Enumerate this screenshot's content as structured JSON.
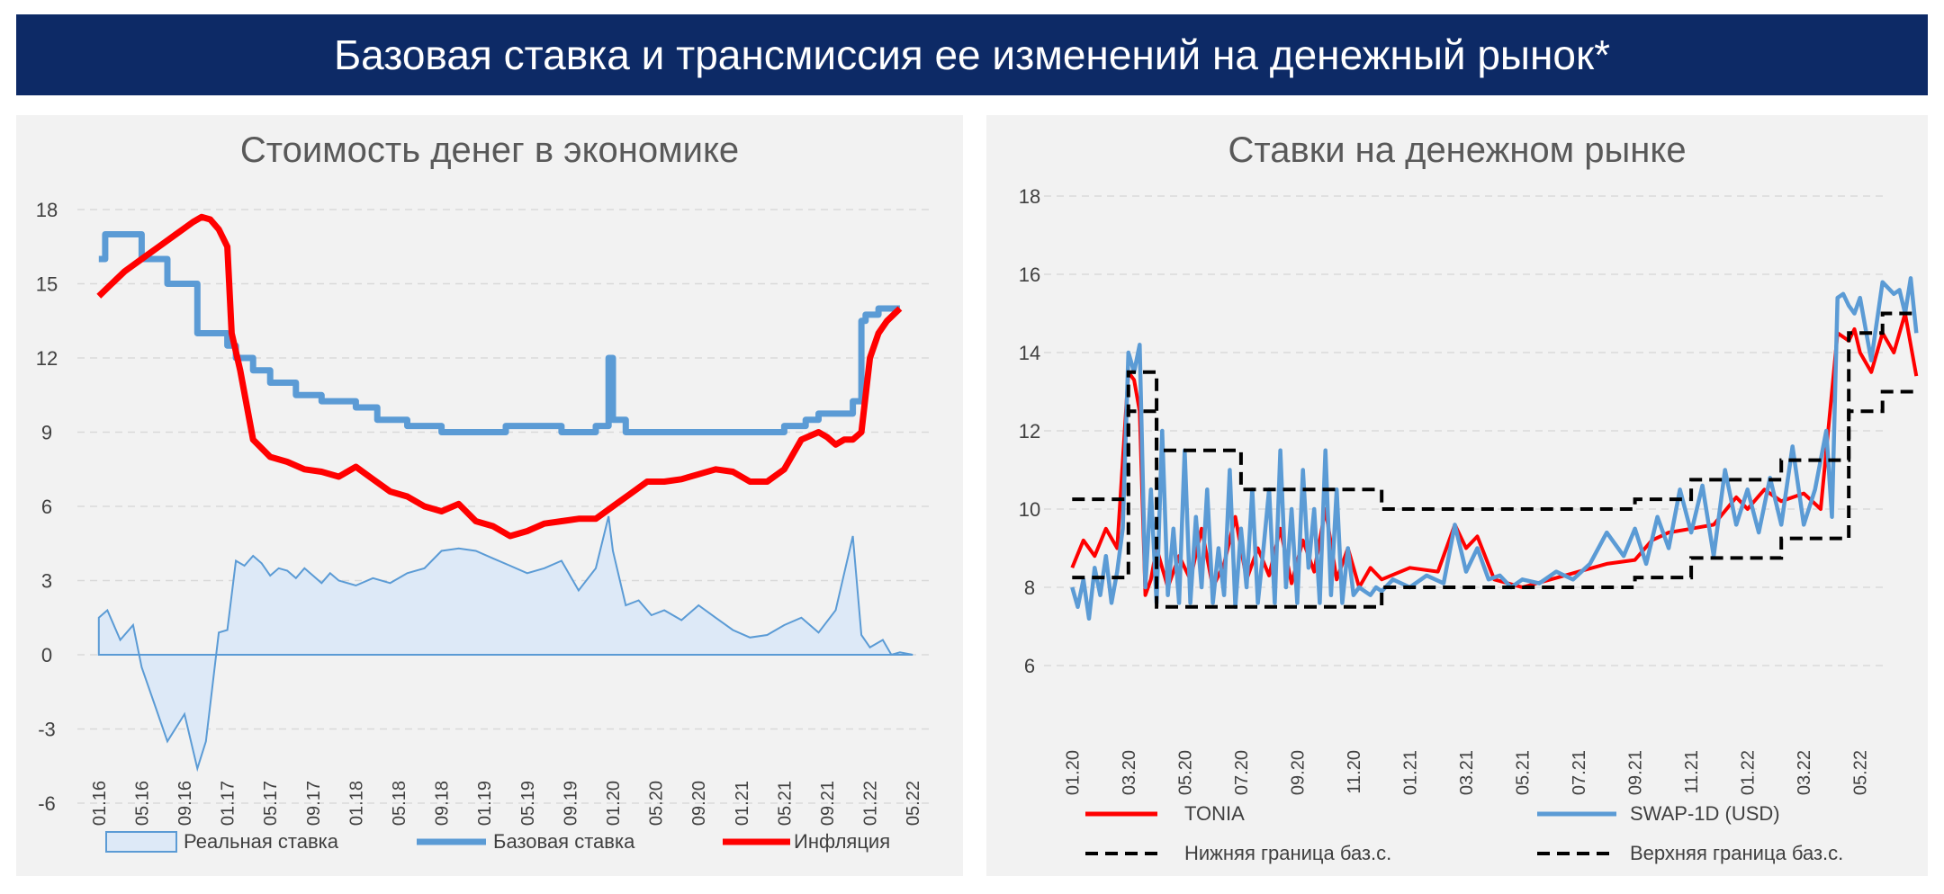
{
  "header": {
    "title": "Базовая ставка и трансмиссия ее изменений на денежный рынок*"
  },
  "chart_data": [
    {
      "type": "line",
      "title": "Стоимость денег в экономике",
      "ylim": [
        -6,
        18
      ],
      "yticks": [
        "18",
        "15",
        "12",
        "9",
        "6",
        "3",
        "0",
        "-3",
        "-6"
      ],
      "categories": [
        "01.16",
        "05.16",
        "09.16",
        "01.17",
        "05.17",
        "09.17",
        "01.18",
        "05.18",
        "09.18",
        "01.19",
        "05.19",
        "09.19",
        "01.20",
        "05.20",
        "09.20",
        "01.21",
        "05.21",
        "09.21",
        "01.22",
        "05.22"
      ],
      "grid": "horizontal dashed",
      "legend_position": "bottom",
      "legend": [
        "Реальная ставка",
        "Базовая ставка",
        "Инфляция"
      ],
      "colors": {
        "real": "#5b9bd5",
        "real_fill": "#dde9f7",
        "base": "#5b9bd5",
        "inflation": "#ff0000"
      },
      "series": [
        {
          "name": "Реальная ставка",
          "kind": "area",
          "x": [
            0,
            0.2,
            0.5,
            0.8,
            1.0,
            1.3,
            1.6,
            2.0,
            2.3,
            2.5,
            2.8,
            3.0,
            3.2,
            3.4,
            3.6,
            3.8,
            4.0,
            4.2,
            4.4,
            4.6,
            4.8,
            5.0,
            5.2,
            5.4,
            5.6,
            6.0,
            6.4,
            6.8,
            7.2,
            7.6,
            8.0,
            8.4,
            8.8,
            9.2,
            9.6,
            10.0,
            10.4,
            10.8,
            11.2,
            11.6,
            11.9,
            12.0,
            12.3,
            12.6,
            12.9,
            13.2,
            13.6,
            14.0,
            14.4,
            14.8,
            15.2,
            15.6,
            16.0,
            16.4,
            16.8,
            17.2,
            17.6,
            17.8,
            18.0,
            18.2,
            18.3,
            18.5,
            18.7,
            19.0
          ],
          "y": [
            1.5,
            1.8,
            0.6,
            1.2,
            -0.5,
            -2.0,
            -3.5,
            -2.4,
            -4.6,
            -3.5,
            0.9,
            1.0,
            3.8,
            3.6,
            4.0,
            3.7,
            3.2,
            3.5,
            3.4,
            3.1,
            3.5,
            3.2,
            2.9,
            3.3,
            3.0,
            2.8,
            3.1,
            2.9,
            3.3,
            3.5,
            4.2,
            4.3,
            4.2,
            3.9,
            3.6,
            3.3,
            3.5,
            3.8,
            2.6,
            3.5,
            5.6,
            4.2,
            2.0,
            2.2,
            1.6,
            1.8,
            1.4,
            2.0,
            1.5,
            1.0,
            0.7,
            0.8,
            1.2,
            1.5,
            0.9,
            1.8,
            4.8,
            0.8,
            0.3,
            0.5,
            0.6,
            0.0,
            0.1,
            0.0
          ]
        },
        {
          "name": "Базовая ставка",
          "kind": "line",
          "x": [
            0,
            0.15,
            0.15,
            1.0,
            1.0,
            1.6,
            1.6,
            2.3,
            2.3,
            3.0,
            3.0,
            3.2,
            3.2,
            3.6,
            3.6,
            4.0,
            4.0,
            4.6,
            4.6,
            5.2,
            5.2,
            6.0,
            6.0,
            6.5,
            6.5,
            7.2,
            7.2,
            8.0,
            8.0,
            9.5,
            9.5,
            10.8,
            10.8,
            11.6,
            11.6,
            11.9,
            11.9,
            12.0,
            12.0,
            12.3,
            12.3,
            14.0,
            14.0,
            16.0,
            16.0,
            16.5,
            16.5,
            16.8,
            16.8,
            17.6,
            17.6,
            17.8,
            17.8,
            17.9,
            17.9,
            18.2,
            18.2,
            18.7
          ],
          "y": [
            16.0,
            16.0,
            17.0,
            17.0,
            16.0,
            16.0,
            15.0,
            15.0,
            13.0,
            13.0,
            12.5,
            12.5,
            12.0,
            12.0,
            11.5,
            11.5,
            11.0,
            11.0,
            10.5,
            10.5,
            10.25,
            10.25,
            10.0,
            10.0,
            9.5,
            9.5,
            9.25,
            9.25,
            9.0,
            9.0,
            9.25,
            9.25,
            9.0,
            9.0,
            9.25,
            9.25,
            12.0,
            12.0,
            9.5,
            9.5,
            9.0,
            9.0,
            9.0,
            9.0,
            9.25,
            9.25,
            9.5,
            9.5,
            9.75,
            9.75,
            10.25,
            10.25,
            13.5,
            13.5,
            13.75,
            13.75,
            14.0,
            14.0
          ]
        },
        {
          "name": "Инфляция",
          "kind": "line",
          "x": [
            0,
            0.3,
            0.6,
            1.0,
            1.4,
            1.8,
            2.2,
            2.4,
            2.6,
            2.8,
            3.0,
            3.1,
            3.3,
            3.6,
            4.0,
            4.4,
            4.8,
            5.2,
            5.6,
            6.0,
            6.4,
            6.8,
            7.2,
            7.6,
            8.0,
            8.4,
            8.8,
            9.2,
            9.6,
            10.0,
            10.4,
            10.8,
            11.2,
            11.6,
            12.0,
            12.4,
            12.8,
            13.2,
            13.6,
            14.0,
            14.4,
            14.8,
            15.2,
            15.6,
            16.0,
            16.4,
            16.8,
            17.0,
            17.2,
            17.4,
            17.6,
            17.8,
            18.0,
            18.2,
            18.4,
            18.7
          ],
          "y": [
            14.5,
            15.0,
            15.5,
            16.0,
            16.5,
            17.0,
            17.5,
            17.7,
            17.6,
            17.2,
            16.5,
            13.0,
            11.5,
            8.7,
            8.0,
            7.8,
            7.5,
            7.4,
            7.2,
            7.6,
            7.1,
            6.6,
            6.4,
            6.0,
            5.8,
            6.1,
            5.4,
            5.2,
            4.8,
            5.0,
            5.3,
            5.4,
            5.5,
            5.5,
            6.0,
            6.5,
            7.0,
            7.0,
            7.1,
            7.3,
            7.5,
            7.4,
            7.0,
            7.0,
            7.5,
            8.7,
            9.0,
            8.8,
            8.5,
            8.7,
            8.7,
            9.0,
            12.0,
            13.0,
            13.5,
            14.0
          ]
        }
      ]
    },
    {
      "type": "line",
      "title": "Ставки на денежном рынке",
      "ylim": [
        6,
        18
      ],
      "yticks": [
        "18",
        "16",
        "14",
        "12",
        "10",
        "8",
        "6"
      ],
      "categories": [
        "01.20",
        "03.20",
        "05.20",
        "07.20",
        "09.20",
        "11.20",
        "01.21",
        "03.21",
        "05.21",
        "07.21",
        "09.21",
        "11.21",
        "01.22",
        "03.22",
        "05.22"
      ],
      "grid": "horizontal dashed",
      "legend_position": "bottom",
      "legend": [
        "TONIA",
        "SWAP-1D (USD)",
        "Нижняя граница баз.с.",
        "Верхняя граница баз.с."
      ],
      "colors": {
        "tonia": "#ff0000",
        "swap": "#5b9bd5",
        "bounds": "#000000"
      },
      "series": [
        {
          "name": "Верхняя граница баз.с.",
          "kind": "step",
          "x": [
            0,
            1.0,
            1.0,
            1.5,
            1.5,
            3.0,
            3.0,
            5.5,
            5.5,
            10.0,
            10.0,
            11.0,
            11.0,
            12.6,
            12.6,
            13.8,
            13.8,
            14.4,
            14.4,
            15.0
          ],
          "y": [
            10.25,
            10.25,
            13.5,
            13.5,
            11.5,
            11.5,
            10.5,
            10.5,
            10.0,
            10.0,
            10.25,
            10.25,
            10.75,
            10.75,
            11.25,
            11.25,
            14.5,
            14.5,
            15.0,
            15.0
          ]
        },
        {
          "name": "Нижняя граница баз.с.",
          "kind": "step",
          "x": [
            0,
            1.0,
            1.0,
            1.5,
            1.5,
            3.0,
            3.0,
            5.5,
            5.5,
            10.0,
            10.0,
            11.0,
            11.0,
            12.6,
            12.6,
            13.8,
            13.8,
            14.4,
            14.4,
            15.0
          ],
          "y": [
            8.25,
            8.25,
            12.5,
            12.5,
            7.5,
            7.5,
            7.5,
            7.5,
            8.0,
            8.0,
            8.25,
            8.25,
            8.75,
            8.75,
            9.25,
            9.25,
            12.5,
            12.5,
            13.0,
            13.0
          ]
        },
        {
          "name": "TONIA",
          "kind": "line",
          "x": [
            0,
            0.2,
            0.4,
            0.6,
            0.8,
            1.0,
            1.1,
            1.2,
            1.3,
            1.4,
            1.5,
            1.6,
            1.7,
            1.9,
            2.1,
            2.3,
            2.5,
            2.7,
            2.9,
            3.1,
            3.3,
            3.5,
            3.7,
            3.9,
            4.1,
            4.3,
            4.5,
            4.7,
            4.9,
            5.1,
            5.3,
            5.5,
            6.0,
            6.5,
            6.8,
            7.0,
            7.2,
            7.5,
            8.0,
            8.5,
            9.0,
            9.5,
            10.0,
            10.3,
            10.6,
            11.0,
            11.4,
            11.8,
            12.0,
            12.3,
            12.6,
            13.0,
            13.3,
            13.6,
            13.8,
            13.9,
            14.0,
            14.2,
            14.4,
            14.6,
            14.8,
            14.9,
            15.0
          ],
          "y": [
            8.5,
            9.2,
            8.8,
            9.5,
            9.0,
            13.5,
            13.3,
            12.5,
            7.8,
            8.2,
            9.0,
            8.5,
            8.0,
            8.8,
            8.2,
            9.5,
            8.0,
            8.6,
            9.8,
            8.2,
            9.0,
            8.3,
            9.5,
            8.1,
            9.2,
            8.4,
            10.0,
            8.2,
            9.0,
            8.0,
            8.5,
            8.2,
            8.5,
            8.4,
            9.6,
            9.0,
            9.3,
            8.2,
            8.0,
            8.2,
            8.4,
            8.6,
            8.7,
            9.2,
            9.4,
            9.5,
            9.6,
            10.3,
            10.0,
            10.5,
            10.2,
            10.4,
            10.0,
            14.5,
            14.3,
            14.6,
            14.0,
            13.5,
            14.5,
            14.0,
            15.0,
            14.2,
            13.4
          ]
        },
        {
          "name": "SWAP-1D (USD)",
          "kind": "line",
          "x": [
            0,
            0.1,
            0.2,
            0.3,
            0.4,
            0.5,
            0.6,
            0.7,
            0.8,
            0.9,
            1.0,
            1.1,
            1.2,
            1.3,
            1.4,
            1.5,
            1.6,
            1.7,
            1.8,
            1.9,
            2.0,
            2.1,
            2.2,
            2.3,
            2.4,
            2.5,
            2.6,
            2.7,
            2.8,
            2.9,
            3.0,
            3.1,
            3.2,
            3.3,
            3.4,
            3.5,
            3.6,
            3.7,
            3.8,
            3.9,
            4.0,
            4.1,
            4.2,
            4.3,
            4.4,
            4.5,
            4.6,
            4.7,
            4.8,
            4.9,
            5.0,
            5.1,
            5.2,
            5.3,
            5.4,
            5.5,
            5.7,
            6.0,
            6.3,
            6.6,
            6.8,
            7.0,
            7.2,
            7.4,
            7.6,
            7.8,
            8.0,
            8.3,
            8.6,
            8.9,
            9.2,
            9.5,
            9.8,
            10.0,
            10.2,
            10.4,
            10.6,
            10.8,
            11.0,
            11.2,
            11.4,
            11.6,
            11.8,
            12.0,
            12.2,
            12.4,
            12.6,
            12.8,
            13.0,
            13.2,
            13.4,
            13.5,
            13.6,
            13.7,
            13.8,
            13.9,
            14.0,
            14.2,
            14.4,
            14.6,
            14.7,
            14.8,
            14.9,
            15.0
          ],
          "y": [
            8.0,
            7.5,
            8.2,
            7.2,
            8.5,
            7.8,
            8.8,
            7.6,
            8.4,
            9.5,
            14.0,
            13.5,
            14.2,
            8.0,
            10.5,
            7.6,
            12.0,
            7.8,
            9.5,
            7.6,
            11.5,
            7.6,
            9.8,
            8.0,
            10.5,
            7.6,
            9.0,
            7.8,
            11.0,
            7.5,
            9.5,
            8.0,
            10.5,
            7.6,
            9.0,
            10.5,
            7.6,
            11.5,
            8.0,
            10.0,
            7.6,
            11.0,
            8.5,
            10.0,
            7.6,
            11.5,
            7.8,
            10.5,
            7.6,
            9.0,
            7.8,
            8.0,
            7.9,
            7.8,
            8.0,
            7.9,
            8.2,
            8.0,
            8.3,
            8.1,
            9.6,
            8.4,
            9.0,
            8.2,
            8.3,
            8.0,
            8.2,
            8.1,
            8.4,
            8.2,
            8.6,
            9.4,
            8.8,
            9.5,
            8.6,
            9.8,
            9.0,
            10.5,
            9.4,
            10.6,
            8.8,
            11.0,
            9.6,
            10.5,
            9.4,
            10.8,
            9.6,
            11.6,
            9.6,
            10.5,
            12.0,
            9.8,
            15.4,
            15.5,
            15.2,
            15.0,
            15.4,
            13.8,
            15.8,
            15.5,
            15.6,
            15.0,
            15.9,
            14.5
          ]
        }
      ]
    }
  ]
}
